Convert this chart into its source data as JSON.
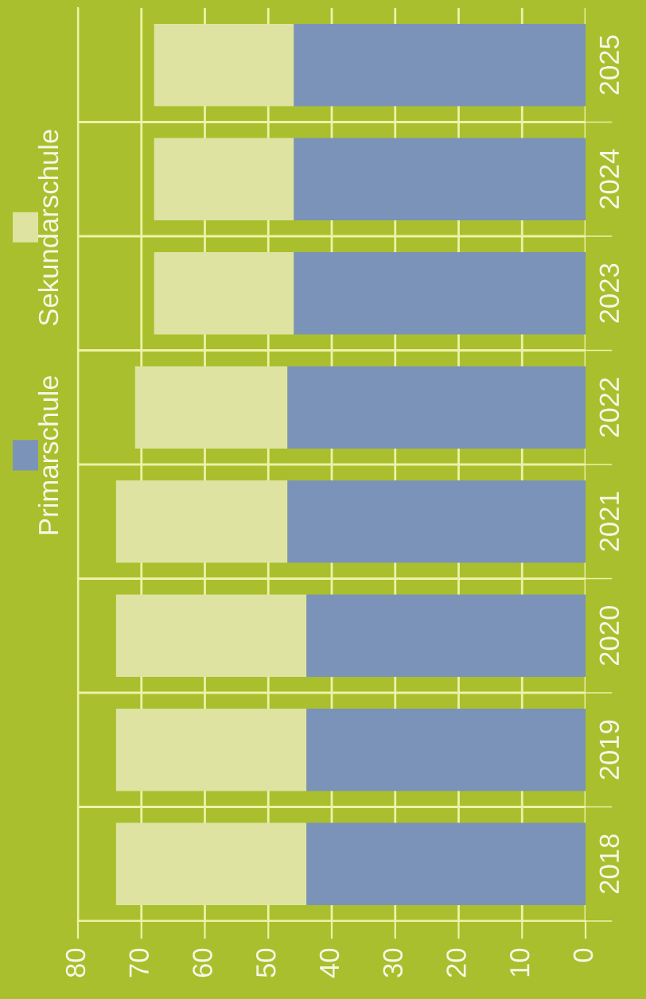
{
  "chart_data": {
    "type": "bar",
    "orientation": "horizontal",
    "stacked": true,
    "categories": [
      "2025",
      "2024",
      "2023",
      "2022",
      "2021",
      "2020",
      "2019",
      "2018"
    ],
    "series": [
      {
        "name": "Primarschule",
        "color": "#7b93b9",
        "values": [
          46,
          46,
          46,
          47,
          47,
          44,
          44,
          44
        ]
      },
      {
        "name": "Sekundarschule",
        "color": "#dee3a2",
        "values": [
          22,
          22,
          22,
          24,
          27,
          30,
          30,
          30
        ]
      }
    ],
    "xlim": [
      80,
      0
    ],
    "xticks": [
      80,
      70,
      60,
      50,
      40,
      30,
      20,
      10,
      0
    ],
    "grid": true,
    "legend": "left"
  }
}
